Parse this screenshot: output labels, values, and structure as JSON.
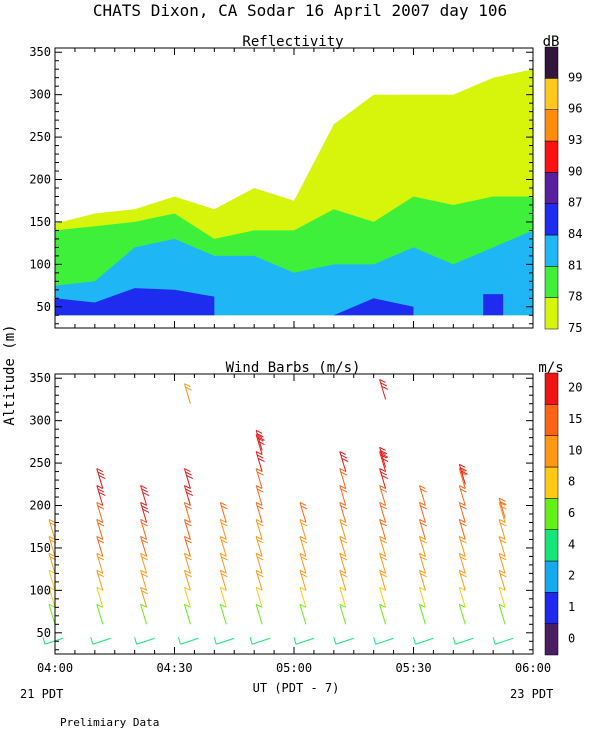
{
  "title": "CHATS Dixon, CA  Sodar  16 April 2007  day 106",
  "ylabel": "Altitude (m)",
  "xlabel": "UT  (PDT - 7)",
  "x_ticks": [
    "04:00",
    "04:30",
    "05:00",
    "05:30",
    "06:00"
  ],
  "footer_left": "21 PDT",
  "footer_right": "23 PDT",
  "note": "Prelimiary Data",
  "chart_data": [
    {
      "type": "heatmap",
      "title": "Reflectivity",
      "units": "dB",
      "x_range": [
        "04:00",
        "06:00"
      ],
      "ylim": [
        25,
        355
      ],
      "y_ticks": [
        50,
        100,
        150,
        200,
        250,
        300,
        350
      ],
      "colorbar_labels": [
        75,
        78,
        81,
        84,
        87,
        90,
        93,
        96,
        99
      ],
      "colorbar_colors": [
        "#d7f50a",
        "#3ff03a",
        "#1eb6f5",
        "#1e2cf0",
        "#5a1ea0",
        "#ff1010",
        "#ff8c0a",
        "#ffc81e",
        "#32143c"
      ],
      "contour_bands": [
        {
          "level_db": 75,
          "color": "#d7f50a",
          "times": [
            "04:00",
            "04:10",
            "04:20",
            "04:30",
            "04:40",
            "04:50",
            "05:00",
            "05:10",
            "05:20",
            "05:30",
            "05:40",
            "05:50",
            "06:00"
          ],
          "top_altitude_m": [
            148,
            160,
            165,
            180,
            165,
            190,
            175,
            265,
            300,
            300,
            300,
            320,
            330
          ]
        },
        {
          "level_db": 78,
          "color": "#3ff03a",
          "times": [
            "04:00",
            "04:10",
            "04:20",
            "04:30",
            "04:40",
            "04:50",
            "05:00",
            "05:10",
            "05:20",
            "05:30",
            "05:40",
            "05:50",
            "06:00"
          ],
          "top_altitude_m": [
            140,
            145,
            150,
            160,
            130,
            140,
            140,
            165,
            150,
            180,
            170,
            180,
            180
          ]
        },
        {
          "level_db": 81,
          "color": "#1eb6f5",
          "times": [
            "04:00",
            "04:10",
            "04:20",
            "04:30",
            "04:40",
            "04:50",
            "05:00",
            "05:10",
            "05:20",
            "05:30",
            "05:40",
            "05:50",
            "06:00"
          ],
          "top_altitude_m": [
            75,
            80,
            120,
            130,
            110,
            110,
            90,
            100,
            100,
            120,
            100,
            120,
            140
          ]
        },
        {
          "level_db": 84,
          "color": "#1e2cf0",
          "times": [
            "04:00",
            "04:10",
            "04:20",
            "04:30",
            "04:40",
            "04:50",
            "05:00",
            "05:10",
            "05:20",
            "05:30",
            "05:40",
            "05:50",
            "06:00"
          ],
          "top_altitude_m": [
            60,
            55,
            72,
            70,
            62,
            null,
            null,
            40,
            60,
            50,
            null,
            65,
            null
          ]
        }
      ]
    },
    {
      "type": "scatter",
      "title": "Wind Barbs (m/s)",
      "units": "m/s",
      "x_range": [
        "04:00",
        "06:00"
      ],
      "ylim": [
        25,
        355
      ],
      "y_ticks": [
        50,
        100,
        150,
        200,
        250,
        300,
        350
      ],
      "colorbar_labels": [
        0,
        1,
        2,
        4,
        6,
        8,
        10,
        15,
        20
      ],
      "colorbar_colors": [
        "#4b1e64",
        "#1e28f0",
        "#14aaf0",
        "#14e678",
        "#64f014",
        "#ffc814",
        "#ff9614",
        "#ff6414",
        "#f01414"
      ],
      "times": [
        "04:00",
        "04:12",
        "04:23",
        "04:34",
        "04:43",
        "04:52",
        "05:03",
        "05:13",
        "05:23",
        "05:33",
        "05:43",
        "05:53"
      ],
      "altitudes_m": [
        40,
        60,
        80,
        100,
        120,
        140,
        160,
        180,
        200,
        220,
        240,
        260,
        320
      ],
      "profiles": [
        {
          "time": "04:00",
          "top_m": 160,
          "top_speed": 12
        },
        {
          "time": "04:12",
          "top_m": 220,
          "top_speed": 22
        },
        {
          "time": "04:23",
          "top_m": 200,
          "top_speed": 22
        },
        {
          "time": "04:34",
          "top_m": 220,
          "top_speed": 22,
          "extra_m": 320,
          "extra_speed": 10
        },
        {
          "time": "04:43",
          "top_m": 180,
          "top_speed": 15
        },
        {
          "time": "04:52",
          "top_m": 265,
          "top_speed": 22
        },
        {
          "time": "05:03",
          "top_m": 180,
          "top_speed": 15
        },
        {
          "time": "05:13",
          "top_m": 240,
          "top_speed": 20
        },
        {
          "time": "05:23",
          "top_m": 245,
          "top_speed": 22,
          "extra_m": 325,
          "extra_speed": 20
        },
        {
          "time": "05:33",
          "top_m": 200,
          "top_speed": 18
        },
        {
          "time": "05:43",
          "top_m": 225,
          "top_speed": 20
        },
        {
          "time": "05:53",
          "top_m": 185,
          "top_speed": 15
        }
      ]
    }
  ]
}
